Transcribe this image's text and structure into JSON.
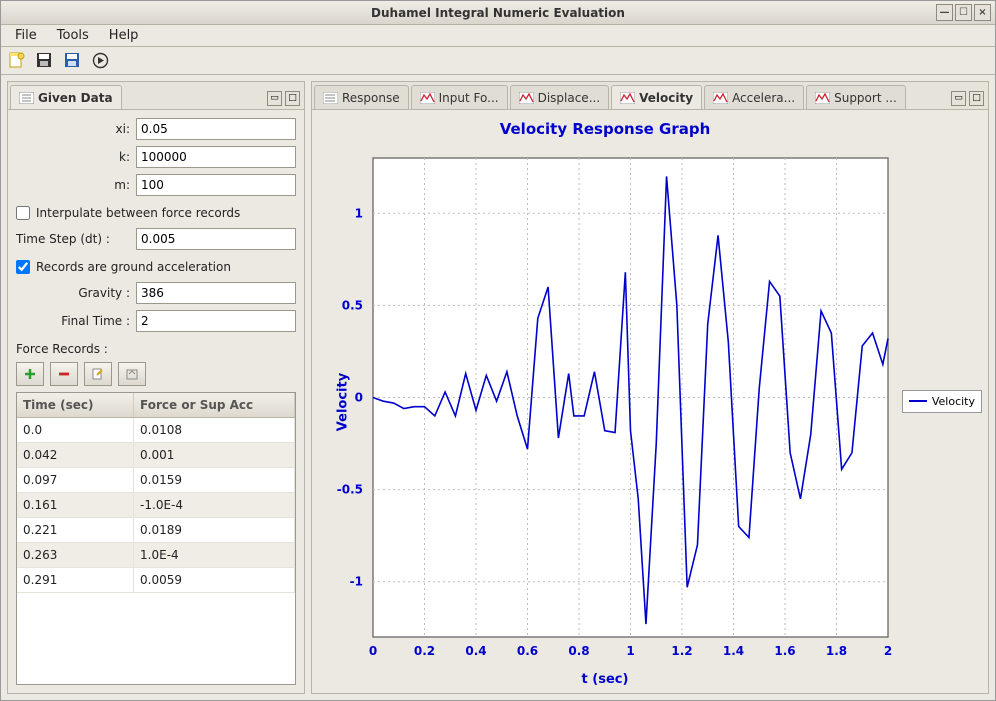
{
  "window": {
    "title": "Duhamel Integral Numeric Evaluation"
  },
  "menu": {
    "items": [
      "File",
      "Tools",
      "Help"
    ]
  },
  "toolbar_icons": [
    "new-file-icon",
    "save-icon",
    "save-as-icon",
    "run-icon"
  ],
  "left_panel": {
    "tab_label": "Given Data",
    "fields": {
      "xi_label": "xi:",
      "xi": "0.05",
      "k_label": "k:",
      "k": "100000",
      "m_label": "m:",
      "m": "100",
      "dt_label": "Time Step (dt) :",
      "dt": "0.005",
      "gravity_label": "Gravity :",
      "gravity": "386",
      "final_time_label": "Final Time :",
      "final_time": "2"
    },
    "interp_checkbox": {
      "label": "Interpulate between force records",
      "checked": false
    },
    "ground_checkbox": {
      "label": "Records are ground acceleration",
      "checked": true
    },
    "force_records_label": "Force Records :",
    "table": {
      "columns": [
        "Time (sec)",
        "Force or Sup Acc"
      ],
      "rows": [
        [
          "0.0",
          "0.0108"
        ],
        [
          "0.042",
          "0.001"
        ],
        [
          "0.097",
          "0.0159"
        ],
        [
          "0.161",
          "-1.0E-4"
        ],
        [
          "0.221",
          "0.0189"
        ],
        [
          "0.263",
          "1.0E-4"
        ],
        [
          "0.291",
          "0.0059"
        ]
      ]
    },
    "record_buttons": [
      "add",
      "remove",
      "edit",
      "import"
    ]
  },
  "right_panel": {
    "tabs": [
      {
        "label": "Response",
        "active": false
      },
      {
        "label": "Input Fo...",
        "active": false
      },
      {
        "label": "Displace...",
        "active": false
      },
      {
        "label": "Velocity",
        "active": true
      },
      {
        "label": "Accelera...",
        "active": false
      },
      {
        "label": "Support ...",
        "active": false
      }
    ],
    "chart": {
      "type": "line",
      "title": "Velocity Response Graph",
      "xlabel": "t (sec)",
      "ylabel": "Velocity",
      "xlim": [
        0,
        2
      ],
      "ylim": [
        -1.3,
        1.3
      ],
      "xticks": [
        0,
        0.2,
        0.4,
        0.6,
        0.8,
        1,
        1.2,
        1.4,
        1.6,
        1.8,
        2
      ],
      "yticks": [
        -1,
        -0.5,
        0,
        0.5,
        1
      ],
      "line_color": "#0000cc",
      "grid_color": "#bdbdbd",
      "background": "#ffffff",
      "title_color": "#0000cc",
      "axis_label_color": "#0000cc",
      "tick_label_color": "#0000cc",
      "title_fontsize": 15,
      "label_fontsize": 13,
      "tick_fontsize": 12,
      "line_width": 1.6,
      "legend": {
        "label": "Velocity",
        "position": "right"
      },
      "series": {
        "x": [
          0,
          0.04,
          0.08,
          0.12,
          0.16,
          0.2,
          0.24,
          0.28,
          0.32,
          0.36,
          0.4,
          0.44,
          0.48,
          0.52,
          0.56,
          0.6,
          0.64,
          0.68,
          0.72,
          0.76,
          0.78,
          0.82,
          0.86,
          0.9,
          0.94,
          0.98,
          1.0,
          1.03,
          1.06,
          1.1,
          1.14,
          1.18,
          1.22,
          1.26,
          1.3,
          1.34,
          1.38,
          1.42,
          1.46,
          1.5,
          1.54,
          1.58,
          1.62,
          1.66,
          1.7,
          1.74,
          1.78,
          1.82,
          1.86,
          1.9,
          1.94,
          1.98,
          2.0
        ],
        "y": [
          0.0,
          -0.02,
          -0.03,
          -0.06,
          -0.05,
          -0.05,
          -0.1,
          0.03,
          -0.1,
          0.13,
          -0.07,
          0.12,
          -0.02,
          0.14,
          -0.1,
          -0.28,
          0.43,
          0.6,
          -0.22,
          0.13,
          -0.1,
          -0.1,
          0.14,
          -0.18,
          -0.19,
          0.68,
          -0.18,
          -0.55,
          -1.23,
          -0.25,
          1.2,
          0.5,
          -1.03,
          -0.8,
          0.4,
          0.88,
          0.3,
          -0.7,
          -0.76,
          0.05,
          0.63,
          0.55,
          -0.3,
          -0.55,
          -0.2,
          0.47,
          0.35,
          -0.39,
          -0.3,
          0.28,
          0.35,
          0.18,
          0.32
        ]
      }
    }
  }
}
